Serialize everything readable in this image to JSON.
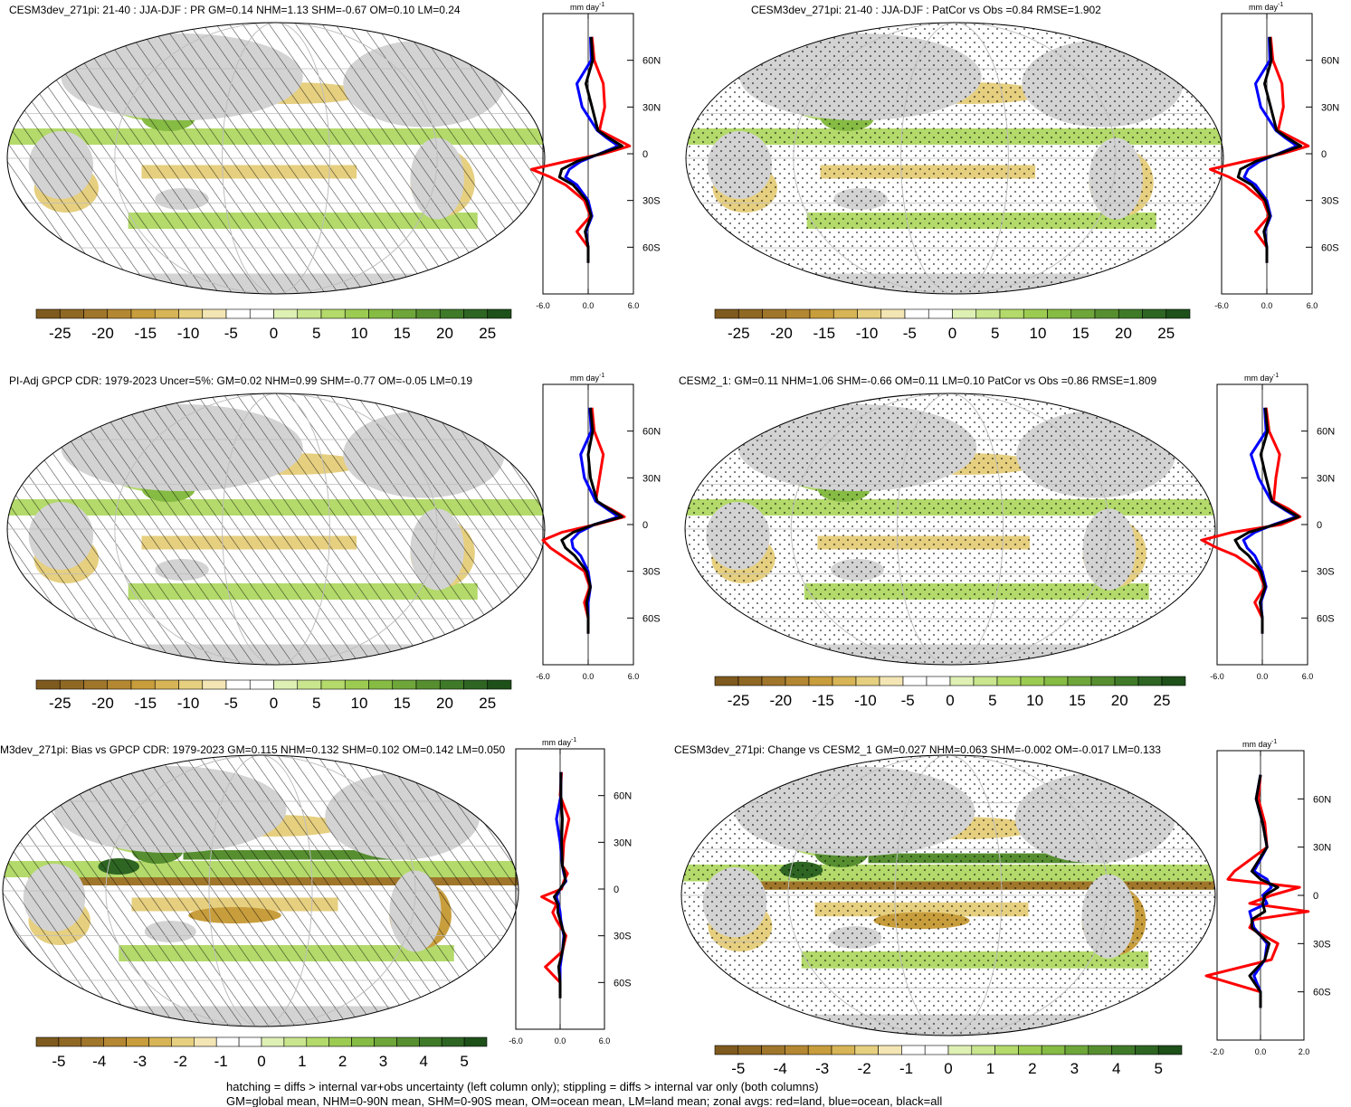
{
  "colors": {
    "brown_green_scale": [
      "#7f5a1e",
      "#8f6824",
      "#a0762b",
      "#b48732",
      "#c89d3c",
      "#d7b455",
      "#e6cf7f",
      "#f3e6b4",
      "#ffffff",
      "#ffffff",
      "#dff0b4",
      "#c9e68e",
      "#b3da6a",
      "#9ccb52",
      "#86bb44",
      "#6ea63a",
      "#578f30",
      "#3f7a28",
      "#2e6523",
      "#1e5019"
    ],
    "land": "#d3d3d3",
    "zonal_land": "#ff0000",
    "zonal_ocean": "#0000ff",
    "zonal_all": "#000000"
  },
  "panels": [
    {
      "title": "CESM3dev_271pi: 21-40 : JJA-DJF : PR GM=0.14 NHM=1.13 SHM=-0.67 OM=0.10 LM=0.24",
      "overlay": "hatching",
      "colorbar_labels": [
        "-25",
        "-20",
        "-15",
        "-10",
        "-5",
        "0",
        "5",
        "10",
        "15",
        "20",
        "25"
      ],
      "zonal_unit": "mm day",
      "zonal_unit_exp": "-1",
      "zonal_x_ticks": [
        "-6.0",
        "0.0",
        "6.0"
      ],
      "zonal_lat_ticks": [
        "60N",
        "30N",
        "0",
        "30S",
        "60S"
      ]
    },
    {
      "title": "CESM3dev_271pi: 21-40 : JJA-DJF : PatCor vs Obs =0.84 RMSE=1.902",
      "overlay": "stippling",
      "colorbar_labels": [
        "-25",
        "-20",
        "-15",
        "-10",
        "-5",
        "0",
        "5",
        "10",
        "15",
        "20",
        "25"
      ],
      "zonal_unit": "mm day",
      "zonal_unit_exp": "-1",
      "zonal_x_ticks": [
        "-6.0",
        "0.0",
        "6.0"
      ],
      "zonal_lat_ticks": [
        "60N",
        "30N",
        "0",
        "30S",
        "60S"
      ]
    },
    {
      "title": "PI-Adj GPCP CDR: 1979-2023 Uncer=5%: GM=0.02 NHM=0.99 SHM=-0.77 OM=-0.05 LM=0.19",
      "overlay": "hatching",
      "colorbar_labels": [
        "-25",
        "-20",
        "-15",
        "-10",
        "-5",
        "0",
        "5",
        "10",
        "15",
        "20",
        "25"
      ],
      "zonal_unit": "mm day",
      "zonal_unit_exp": "-1",
      "zonal_x_ticks": [
        "-6.0",
        "0.0",
        "6.0"
      ],
      "zonal_lat_ticks": [
        "60N",
        "30N",
        "0",
        "30S",
        "60S"
      ]
    },
    {
      "title": "CESM2_1: GM=0.11 NHM=1.06 SHM=-0.66 OM=0.11 LM=0.10 PatCor vs Obs =0.86 RMSE=1.809",
      "overlay": "stippling",
      "colorbar_labels": [
        "-25",
        "-20",
        "-15",
        "-10",
        "-5",
        "0",
        "5",
        "10",
        "15",
        "20",
        "25"
      ],
      "zonal_unit": "mm day",
      "zonal_unit_exp": "-1",
      "zonal_x_ticks": [
        "-6.0",
        "0.0",
        "6.0"
      ],
      "zonal_lat_ticks": [
        "60N",
        "30N",
        "0",
        "30S",
        "60S"
      ]
    },
    {
      "title": "M3dev_271pi: Bias vs GPCP CDR: 1979-2023 GM=0.115 NHM=0.132 SHM=0.102 OM=0.142 LM=0.050",
      "overlay": "hatching",
      "colorbar_labels": [
        "-5",
        "-4",
        "-3",
        "-2",
        "-1",
        "0",
        "1",
        "2",
        "3",
        "4",
        "5"
      ],
      "zonal_unit": "mm day",
      "zonal_unit_exp": "-1",
      "zonal_x_ticks": [
        "-6.0",
        "0.0",
        "6.0"
      ],
      "zonal_lat_ticks": [
        "60N",
        "30N",
        "0",
        "30S",
        "60S"
      ]
    },
    {
      "title": "CESM3dev_271pi: Change vs CESM2_1 GM=0.027 NHM=0.063 SHM=-0.002 OM=-0.017 LM=0.133",
      "overlay": "stippling",
      "colorbar_labels": [
        "-5",
        "-4",
        "-3",
        "-2",
        "-1",
        "0",
        "1",
        "2",
        "3",
        "4",
        "5"
      ],
      "zonal_unit": "mm day",
      "zonal_unit_exp": "-1",
      "zonal_x_ticks": [
        "-2.0",
        "0.0",
        "2.0"
      ],
      "zonal_lat_ticks": [
        "60N",
        "30N",
        "0",
        "30S",
        "60S"
      ]
    }
  ],
  "footer": {
    "line1": "hatching = diffs > internal var+obs uncertainty (left column only); stippling = diffs > internal var only (both columns)",
    "line2": "GM=global mean, NHM=0-90N mean, SHM=0-90S mean, OM=ocean mean, LM=land mean; zonal avgs: red=land, blue=ocean, black=all"
  },
  "chart_data": [
    {
      "type": "heatmap",
      "title": "CESM3dev_271pi: 21-40 : JJA-DJF : PR GM=0.14 NHM=1.13 SHM=-0.67 OM=0.10 LM=0.24",
      "colorbar_range": [
        -25,
        25
      ],
      "zonal_xlim": [
        -6,
        6
      ],
      "lat_ticks": [
        "60N",
        "30N",
        "0",
        "30S",
        "60S"
      ],
      "zonal_lat": [
        75,
        60,
        45,
        30,
        15,
        10,
        5,
        0,
        -5,
        -10,
        -15,
        -20,
        -30,
        -40,
        -50,
        -60,
        -70
      ],
      "series": [
        {
          "values": [
            0.5,
            0.8,
            2.0,
            2.2,
            1.5,
            3.5,
            5.5,
            2.0,
            -3.0,
            -7.5,
            -5.0,
            -3.0,
            -0.5,
            0.3,
            -1.5,
            0.0,
            0.0
          ]
        },
        {
          "values": [
            0.3,
            0.4,
            -1.5,
            -0.8,
            1.2,
            2.5,
            4.0,
            1.5,
            -1.0,
            -2.5,
            -3.0,
            -1.5,
            0.0,
            0.5,
            -0.3,
            0.0,
            0.0
          ]
        },
        {
          "values": [
            0.4,
            0.6,
            -0.3,
            0.5,
            1.3,
            2.8,
            4.5,
            1.6,
            -1.5,
            -3.5,
            -3.8,
            -2.0,
            -0.2,
            0.4,
            -0.4,
            0.0,
            0.0
          ]
        }
      ]
    },
    {
      "type": "heatmap",
      "title": "CESM3dev_271pi: 21-40 : JJA-DJF : PatCor vs Obs =0.84 RMSE=1.902",
      "colorbar_range": [
        -25,
        25
      ],
      "zonal_xlim": [
        -6,
        6
      ],
      "lat_ticks": [
        "60N",
        "30N",
        "0",
        "30S",
        "60S"
      ],
      "zonal_lat": [
        75,
        60,
        45,
        30,
        15,
        10,
        5,
        0,
        -5,
        -10,
        -15,
        -20,
        -30,
        -40,
        -50,
        -60,
        -70
      ],
      "series": [
        {
          "values": [
            0.5,
            0.8,
            2.0,
            2.2,
            1.5,
            3.5,
            5.5,
            2.0,
            -3.0,
            -7.5,
            -5.0,
            -3.0,
            -0.5,
            0.3,
            -1.5,
            0.0,
            0.0
          ]
        },
        {
          "values": [
            0.3,
            0.4,
            -1.5,
            -0.8,
            1.2,
            2.5,
            4.0,
            1.5,
            -1.0,
            -2.5,
            -3.0,
            -1.5,
            0.0,
            0.5,
            -0.3,
            0.0,
            0.0
          ]
        },
        {
          "values": [
            0.4,
            0.6,
            -0.3,
            0.5,
            1.3,
            2.8,
            4.5,
            1.6,
            -1.5,
            -3.5,
            -3.8,
            -2.0,
            -0.2,
            0.4,
            -0.4,
            0.0,
            0.0
          ]
        }
      ]
    },
    {
      "type": "heatmap",
      "title": "PI-Adj GPCP CDR: 1979-2023 Uncer=5%: GM=0.02 NHM=0.99 SHM=-0.77 OM=-0.05 LM=0.19",
      "colorbar_range": [
        -25,
        25
      ],
      "zonal_xlim": [
        -6,
        6
      ],
      "lat_ticks": [
        "60N",
        "30N",
        "0",
        "30S",
        "60S"
      ],
      "zonal_lat": [
        75,
        60,
        45,
        30,
        15,
        10,
        5,
        0,
        -5,
        -10,
        -15,
        -20,
        -30,
        -40,
        -50,
        -60,
        -70
      ],
      "series": [
        {
          "values": [
            0.5,
            0.8,
            2.0,
            1.5,
            1.0,
            3.0,
            4.8,
            1.0,
            -3.5,
            -6.0,
            -5.0,
            -3.5,
            -0.5,
            0.2,
            -0.5,
            0.0,
            0.0
          ]
        },
        {
          "values": [
            0.2,
            0.4,
            -1.0,
            -0.5,
            1.0,
            2.5,
            4.0,
            0.8,
            -1.2,
            -2.2,
            -2.0,
            -1.0,
            0.0,
            0.3,
            0.0,
            0.0,
            0.0
          ]
        },
        {
          "values": [
            0.3,
            0.6,
            0.0,
            0.3,
            1.2,
            2.8,
            4.5,
            0.8,
            -2.0,
            -3.5,
            -3.0,
            -1.8,
            -0.2,
            0.3,
            -0.2,
            0.0,
            0.0
          ]
        }
      ]
    },
    {
      "type": "heatmap",
      "title": "CESM2_1: GM=0.11 NHM=1.06 SHM=-0.66 OM=0.11 LM=0.10 PatCor vs Obs =0.86 RMSE=1.809",
      "colorbar_range": [
        -25,
        25
      ],
      "zonal_xlim": [
        -6,
        6
      ],
      "lat_ticks": [
        "60N",
        "30N",
        "0",
        "30S",
        "60S"
      ],
      "zonal_lat": [
        75,
        60,
        45,
        30,
        15,
        10,
        5,
        0,
        -5,
        -10,
        -15,
        -20,
        -30,
        -40,
        -50,
        -60,
        -70
      ],
      "series": [
        {
          "values": [
            0.5,
            0.9,
            2.3,
            1.8,
            1.5,
            3.5,
            5.0,
            2.5,
            -4.0,
            -8.0,
            -6.0,
            -3.5,
            -0.5,
            0.3,
            -1.0,
            0.0,
            0.0
          ]
        },
        {
          "values": [
            0.3,
            0.5,
            -1.5,
            -0.5,
            1.2,
            2.8,
            4.5,
            1.5,
            -1.0,
            -2.5,
            -2.0,
            -1.0,
            0.0,
            0.5,
            -0.2,
            0.0,
            0.0
          ]
        },
        {
          "values": [
            0.4,
            0.7,
            -0.2,
            0.5,
            1.3,
            3.0,
            4.8,
            1.7,
            -1.8,
            -3.6,
            -3.0,
            -1.8,
            -0.2,
            0.4,
            -0.3,
            0.0,
            0.0
          ]
        }
      ]
    },
    {
      "type": "heatmap",
      "title": "M3dev_271pi: Bias vs GPCP CDR: 1979-2023 GM=0.115 NHM=0.132 SHM=0.102 OM=0.142 LM=0.050",
      "colorbar_range": [
        -5,
        5
      ],
      "zonal_xlim": [
        -6,
        6
      ],
      "lat_ticks": [
        "60N",
        "30N",
        "0",
        "30S",
        "60S"
      ],
      "zonal_lat": [
        75,
        60,
        45,
        30,
        15,
        10,
        5,
        0,
        -5,
        -10,
        -15,
        -20,
        -30,
        -40,
        -50,
        -60,
        -70
      ],
      "series": [
        {
          "values": [
            0.2,
            0.0,
            1.2,
            0.5,
            0.3,
            1.0,
            0.5,
            0.2,
            -2.5,
            -0.5,
            -1.0,
            -0.5,
            0.8,
            0.3,
            -2.0,
            0.0,
            0.0
          ]
        },
        {
          "values": [
            0.1,
            0.1,
            -0.5,
            0.0,
            0.3,
            0.5,
            0.8,
            0.0,
            -0.5,
            -0.2,
            0.0,
            0.1,
            0.5,
            0.3,
            0.0,
            0.0,
            0.0
          ]
        },
        {
          "values": [
            0.1,
            0.1,
            0.3,
            0.2,
            0.3,
            0.6,
            0.7,
            0.0,
            -0.8,
            -0.3,
            -0.3,
            0.0,
            0.6,
            0.3,
            -0.2,
            0.0,
            0.0
          ]
        }
      ]
    },
    {
      "type": "heatmap",
      "title": "CESM3dev_271pi: Change vs CESM2_1 GM=0.027 NHM=0.063 SHM=-0.002 OM=-0.017 LM=0.133",
      "colorbar_range": [
        -5,
        5
      ],
      "zonal_xlim": [
        -2,
        2
      ],
      "lat_ticks": [
        "60N",
        "30N",
        "0",
        "30S",
        "60S"
      ],
      "zonal_lat": [
        75,
        60,
        45,
        30,
        15,
        10,
        5,
        0,
        -5,
        -10,
        -15,
        -20,
        -30,
        -40,
        -50,
        -60,
        -70
      ],
      "series": [
        {
          "values": [
            0.0,
            -0.1,
            0.2,
            0.3,
            -1.2,
            -1.5,
            1.8,
            0.5,
            -0.5,
            2.2,
            -0.3,
            -0.5,
            0.8,
            0.5,
            -2.5,
            0.0,
            0.0
          ]
        },
        {
          "values": [
            0.0,
            -0.2,
            0.1,
            0.3,
            -0.3,
            0.3,
            0.5,
            0.1,
            0.3,
            -0.5,
            -0.4,
            -0.3,
            0.3,
            0.2,
            -0.3,
            0.0,
            0.0
          ]
        },
        {
          "values": [
            0.0,
            -0.2,
            0.1,
            0.3,
            -0.4,
            0.0,
            0.8,
            0.2,
            0.1,
            0.2,
            -0.4,
            -0.4,
            0.4,
            0.2,
            -0.5,
            0.0,
            0.0
          ]
        }
      ]
    }
  ]
}
